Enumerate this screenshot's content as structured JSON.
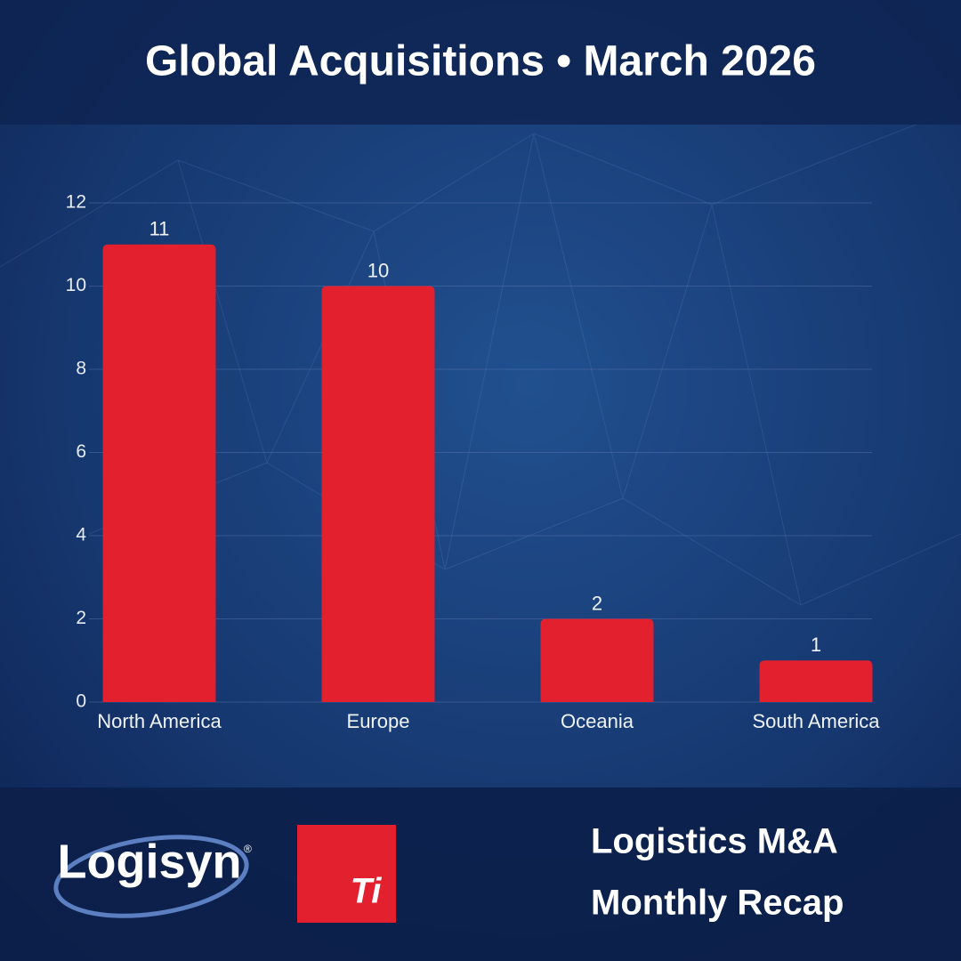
{
  "chart_data": {
    "type": "bar",
    "title": "Global Acquisitions • March 2026",
    "categories": [
      "North America",
      "Europe",
      "Oceania",
      "South America"
    ],
    "values": [
      11,
      10,
      2,
      1
    ],
    "color": "#e2202e",
    "ylim": [
      0,
      12
    ],
    "yticks": [
      0,
      2,
      4,
      6,
      8,
      10,
      12
    ],
    "grid": true
  },
  "branding": {
    "logo": "Logisyn",
    "trademark": "®",
    "badge": "Ti",
    "tagline": [
      "Logistics M&A",
      "Monthly Recap"
    ]
  }
}
